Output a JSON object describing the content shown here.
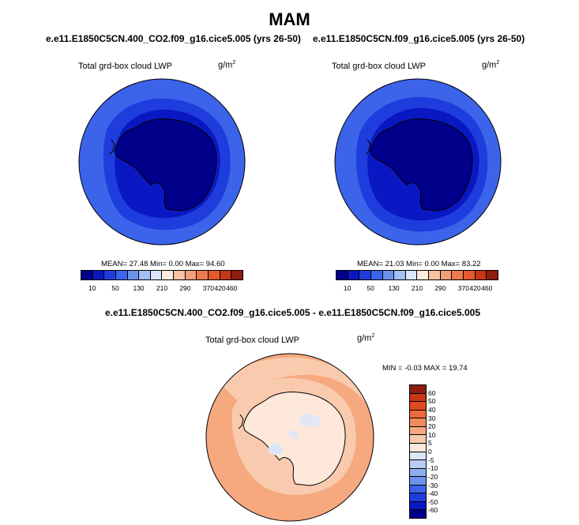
{
  "page": {
    "title": "MAM"
  },
  "panels": [
    {
      "case": "e.e11.E1850C5CN.400_CO2.f09_g16.cice5.005 (yrs 26-50)",
      "variable": "Total grd-box cloud LWP",
      "units_base": "g/m",
      "units_exp": "2",
      "stats": "MEAN=  27.48  Min=   0.00  Max=  94.60"
    },
    {
      "case": "e.e11.E1850C5CN.f09_g16.cice5.005 (yrs 26-50)",
      "variable": "Total grd-box cloud LWP",
      "units_base": "g/m",
      "units_exp": "2",
      "stats": "MEAN=  21.03  Min=   0.00  Max=  83.22"
    }
  ],
  "diff": {
    "case": "e.e11.E1850C5CN.400_CO2.f09_g16.cice5.005 - e.e11.E1850C5CN.f09_g16.cice5.005",
    "variable": "Total grd-box cloud LWP",
    "units_base": "g/m",
    "units_exp": "2",
    "stats": "MIN =  -0.03 MAX =  19.74"
  },
  "colorbar_abs": {
    "labels": [
      "10",
      "50",
      "130",
      "210",
      "290",
      "370",
      "420",
      "460"
    ],
    "colors": [
      "#00008b",
      "#0a18c4",
      "#1f3ddd",
      "#3b64ea",
      "#6b93ee",
      "#a3bff4",
      "#dbe6fb",
      "#fdecdf",
      "#f8c3a5",
      "#f39f78",
      "#ec7a4e",
      "#e45a2c",
      "#c83715",
      "#8f1c10"
    ]
  },
  "colorbar_diff": {
    "labels": [
      "60",
      "50",
      "40",
      "30",
      "20",
      "10",
      "5",
      "0",
      "-5",
      "-10",
      "-20",
      "-30",
      "-40",
      "-50",
      "-60"
    ],
    "colors": [
      "#8f1c10",
      "#c83715",
      "#e14a1f",
      "#ec6a3c",
      "#f28a5e",
      "#f6a87f",
      "#f9caae",
      "#fde8d9",
      "#dbe6fb",
      "#b7cdf5",
      "#8eafef",
      "#6b93ee",
      "#3b64ea",
      "#1f3ddd",
      "#0a18c4",
      "#00008b"
    ]
  },
  "chart_data": [
    {
      "type": "heatmap",
      "projection": "south-polar-stereographic",
      "title": "e.e11.E1850C5CN.400_CO2.f09_g16.cice5.005 (yrs 26-50)",
      "variable": "Total grd-box cloud LWP",
      "units": "g/m^2",
      "mean": 27.48,
      "min": 0.0,
      "max": 94.6,
      "contour_levels": [
        10,
        50,
        130,
        210,
        290,
        370,
        420,
        460
      ]
    },
    {
      "type": "heatmap",
      "projection": "south-polar-stereographic",
      "title": "e.e11.E1850C5CN.f09_g16.cice5.005 (yrs 26-50)",
      "variable": "Total grd-box cloud LWP",
      "units": "g/m^2",
      "mean": 21.03,
      "min": 0.0,
      "max": 83.22,
      "contour_levels": [
        10,
        50,
        130,
        210,
        290,
        370,
        420,
        460
      ]
    },
    {
      "type": "heatmap",
      "projection": "south-polar-stereographic",
      "title": "e.e11.E1850C5CN.400_CO2.f09_g16.cice5.005 - e.e11.E1850C5CN.f09_g16.cice5.005",
      "variable": "Total grd-box cloud LWP",
      "units": "g/m^2",
      "min": -0.03,
      "max": 19.74,
      "contour_levels": [
        -60,
        -50,
        -40,
        -30,
        -20,
        -10,
        -5,
        0,
        5,
        10,
        20,
        30,
        40,
        50,
        60
      ]
    }
  ]
}
